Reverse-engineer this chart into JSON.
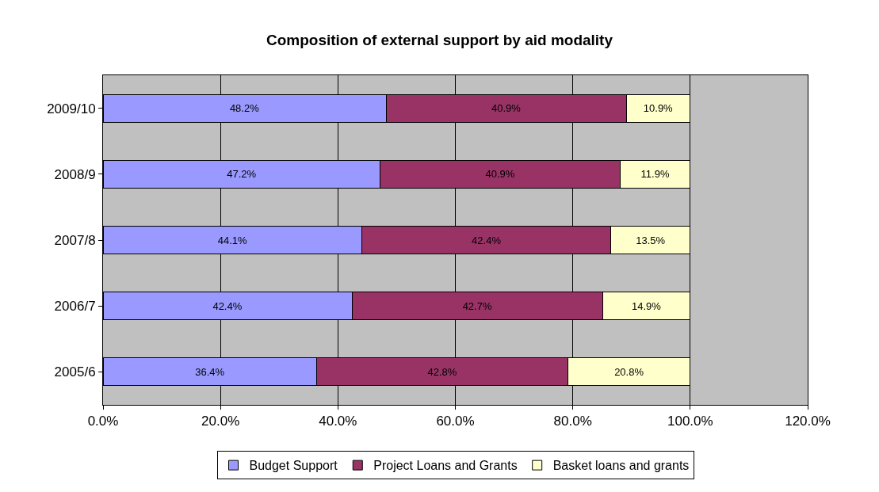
{
  "chart_data": {
    "type": "bar",
    "orientation": "horizontal",
    "stacked": true,
    "title": "Composition of external support by aid modality",
    "categories": [
      "2009/10",
      "2008/9",
      "2007/8",
      "2006/7",
      "2005/6"
    ],
    "series": [
      {
        "name": "Budget Support",
        "color": "#9999ff",
        "values": [
          48.2,
          47.2,
          44.1,
          42.4,
          36.4
        ],
        "value_labels": [
          "48.2%",
          "47.2%",
          "44.1%",
          "42.4%",
          "36.4%"
        ]
      },
      {
        "name": "Project Loans and Grants",
        "color": "#993366",
        "values": [
          40.9,
          40.9,
          42.4,
          42.7,
          42.8
        ],
        "value_labels": [
          "40.9%",
          "40.9%",
          "42.4%",
          "42.7%",
          "42.8%"
        ]
      },
      {
        "name": "Basket loans and grants",
        "color": "#ffffcc",
        "values": [
          10.9,
          11.9,
          13.5,
          14.9,
          20.8
        ],
        "value_labels": [
          "10.9%",
          "11.9%",
          "13.5%",
          "14.9%",
          "20.8%"
        ]
      }
    ],
    "xlim": [
      0,
      120
    ],
    "xticks": [
      {
        "value": 0,
        "label": "0.0%"
      },
      {
        "value": 20,
        "label": "20.0%"
      },
      {
        "value": 40,
        "label": "40.0%"
      },
      {
        "value": 60,
        "label": "60.0%"
      },
      {
        "value": 80,
        "label": "80.0%"
      },
      {
        "value": 100,
        "label": "100.0%"
      },
      {
        "value": 120,
        "label": "120.0%"
      }
    ],
    "grid": "x",
    "legend": "bottom"
  }
}
